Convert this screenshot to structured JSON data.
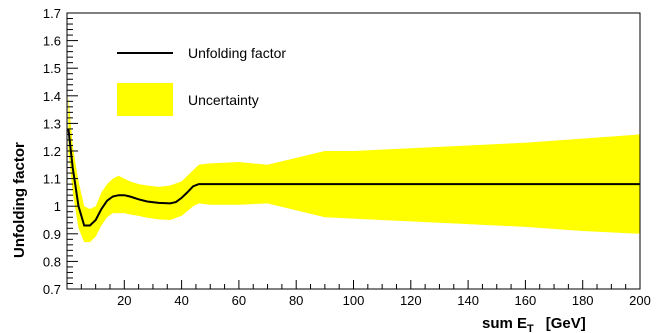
{
  "chart_data": {
    "type": "line",
    "xlabel": "sum E",
    "xlabel_sub": "T",
    "xlabel_unit": "[GeV]",
    "ylabel": "Unfolding factor",
    "xlim": [
      0,
      200
    ],
    "ylim": [
      0.7,
      1.7
    ],
    "x_ticks": [
      20,
      40,
      60,
      80,
      100,
      120,
      140,
      160,
      180,
      200
    ],
    "y_ticks": [
      0.7,
      0.8,
      0.9,
      1,
      1.1,
      1.2,
      1.3,
      1.4,
      1.5,
      1.6,
      1.7
    ],
    "y_tick_labels": [
      "0.7",
      "0.8",
      "0.9",
      "1",
      "1.1",
      "1.2",
      "1.3",
      "1.4",
      "1.5",
      "1.6",
      "1.7"
    ],
    "grid": false,
    "legend_position": "top-left",
    "series": [
      {
        "name": "Unfolding factor",
        "style": "line",
        "color": "#000000",
        "x": [
          0.5,
          2,
          4,
          6,
          8,
          10,
          12,
          14,
          16,
          18,
          20,
          22,
          25,
          28,
          32,
          36,
          38,
          40,
          42,
          44,
          46,
          50,
          60,
          70,
          80,
          90,
          100,
          120,
          140,
          160,
          180,
          200
        ],
        "y": [
          1.28,
          1.14,
          1.0,
          0.93,
          0.93,
          0.95,
          0.99,
          1.02,
          1.035,
          1.04,
          1.04,
          1.035,
          1.025,
          1.017,
          1.012,
          1.01,
          1.015,
          1.03,
          1.05,
          1.072,
          1.08,
          1.08,
          1.08,
          1.08,
          1.08,
          1.08,
          1.08,
          1.08,
          1.08,
          1.08,
          1.08,
          1.08
        ]
      },
      {
        "name": "Uncertainty",
        "style": "band",
        "color": "#ffff00",
        "x": [
          0.5,
          2,
          4,
          6,
          8,
          10,
          12,
          14,
          16,
          18,
          20,
          22,
          25,
          28,
          32,
          36,
          40,
          44,
          46,
          50,
          60,
          70,
          90,
          100,
          120,
          140,
          160,
          180,
          200
        ],
        "upper": [
          1.4,
          1.22,
          1.09,
          1.0,
          0.99,
          1.0,
          1.05,
          1.08,
          1.1,
          1.11,
          1.1,
          1.09,
          1.08,
          1.075,
          1.07,
          1.075,
          1.09,
          1.13,
          1.15,
          1.155,
          1.16,
          1.15,
          1.2,
          1.2,
          1.21,
          1.22,
          1.23,
          1.245,
          1.26
        ],
        "lower": [
          1.2,
          1.05,
          0.92,
          0.87,
          0.87,
          0.89,
          0.93,
          0.96,
          0.975,
          0.975,
          0.975,
          0.97,
          0.965,
          0.958,
          0.952,
          0.95,
          0.965,
          1.0,
          1.01,
          1.005,
          1.005,
          1.01,
          0.96,
          0.955,
          0.945,
          0.935,
          0.925,
          0.91,
          0.9
        ]
      }
    ]
  }
}
